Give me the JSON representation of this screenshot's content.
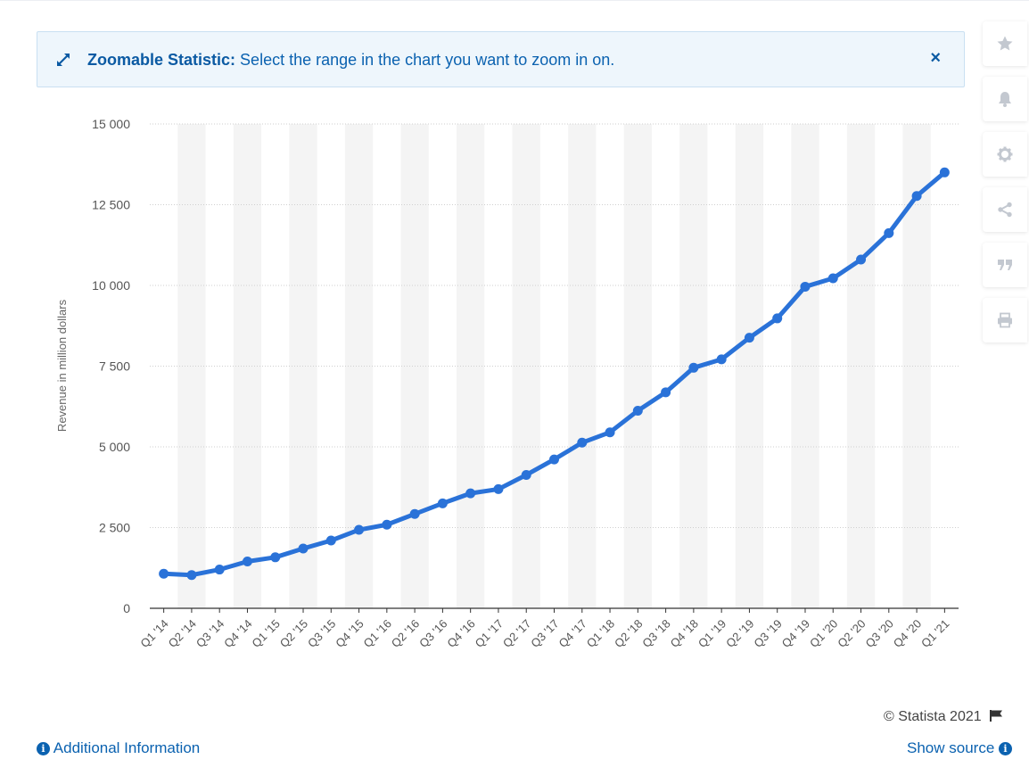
{
  "banner": {
    "title": "Zoomable Statistic:",
    "text": "Select the range in the chart you want to zoom in on.",
    "close_label": "×"
  },
  "toolbar": {
    "icons": [
      "star-icon",
      "bell-icon",
      "gear-icon",
      "share-icon",
      "quote-icon",
      "print-icon"
    ]
  },
  "footer": {
    "additional_info": "Additional Information",
    "copyright": "© Statista 2021",
    "show_source": "Show source"
  },
  "colors": {
    "line": "#2a72d8",
    "accent": "#0b62b0",
    "band": "#f4f4f4",
    "grid": "#cfcfcf"
  },
  "chart_data": {
    "type": "line",
    "title": "",
    "xlabel": "",
    "ylabel": "Revenue in million dollars",
    "ylim": [
      0,
      15000
    ],
    "yticks": [
      0,
      2500,
      5000,
      7500,
      10000,
      12500,
      15000
    ],
    "ytick_labels": [
      "0",
      "2 500",
      "5 000",
      "7 500",
      "10 000",
      "12 500",
      "15 000"
    ],
    "grid": true,
    "categories": [
      "Q1 '14",
      "Q2 '14",
      "Q3 '14",
      "Q4 '14",
      "Q1 '15",
      "Q2 '15",
      "Q3 '15",
      "Q4 '15",
      "Q1 '16",
      "Q2 '16",
      "Q3 '16",
      "Q4 '16",
      "Q1 '17",
      "Q2 '17",
      "Q3 '17",
      "Q4 '17",
      "Q1 '18",
      "Q2 '18",
      "Q3 '18",
      "Q4 '18",
      "Q1 '19",
      "Q2 '19",
      "Q3 '19",
      "Q4 '19",
      "Q1 '20",
      "Q2 '20",
      "Q3 '20",
      "Q4 '20",
      "Q1 '21"
    ],
    "series": [
      {
        "values": [
          1070,
          1030,
          1200,
          1450,
          1580,
          1850,
          2100,
          2430,
          2590,
          2920,
          3250,
          3560,
          3690,
          4130,
          4610,
          5130,
          5450,
          6120,
          6690,
          7450,
          7710,
          8380,
          8980,
          9960,
          10220,
          10800,
          11620,
          12770,
          13500
        ]
      }
    ]
  }
}
